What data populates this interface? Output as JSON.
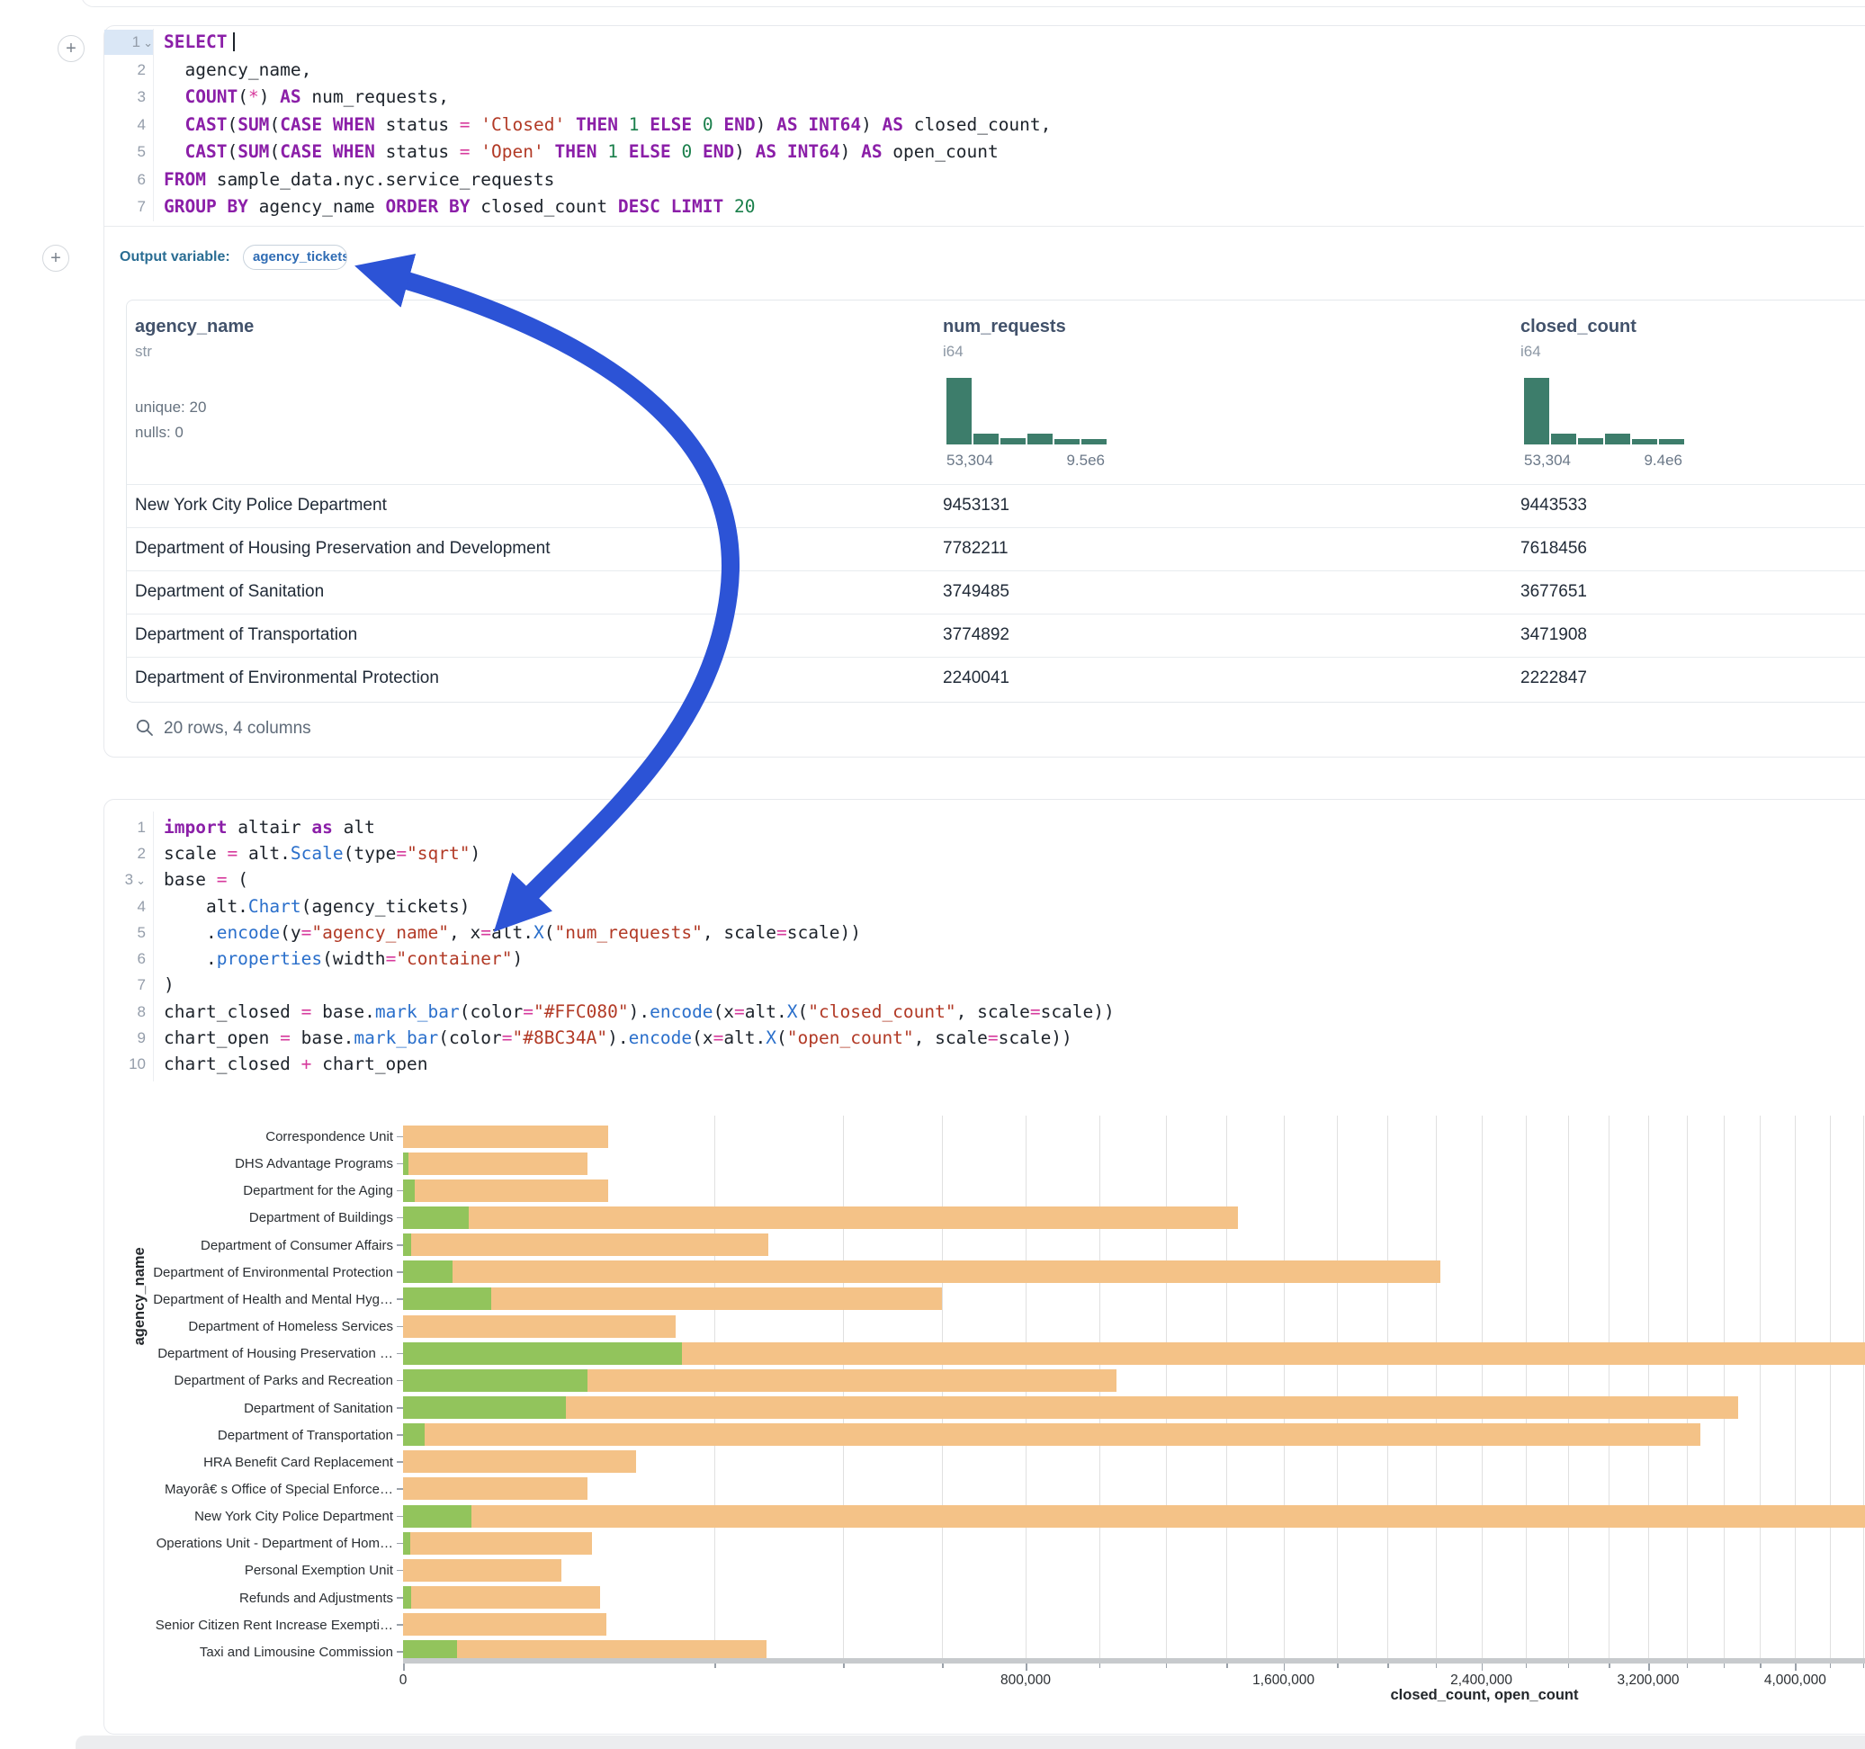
{
  "icons": {
    "collapse_chevron": "⌄",
    "plus": "+"
  },
  "annotation_arrow": {
    "color": "#2C53D6"
  },
  "sql_cell": {
    "output_variable_label": "Output variable:",
    "output_variable_value": "agency_tickets",
    "lines": [
      {
        "n": "1",
        "chev": true,
        "active": true,
        "tokens": [
          [
            "kw",
            "SELECT"
          ],
          [
            "cursor",
            ""
          ]
        ]
      },
      {
        "n": "2",
        "tokens": [
          [
            "p",
            "  agency_name,"
          ]
        ]
      },
      {
        "n": "3",
        "tokens": [
          [
            "p",
            "  "
          ],
          [
            "kw",
            "COUNT"
          ],
          [
            "p",
            "("
          ],
          [
            "op",
            "*"
          ],
          [
            "p",
            ") "
          ],
          [
            "kw",
            "AS"
          ],
          [
            "p",
            " num_requests,"
          ]
        ]
      },
      {
        "n": "4",
        "tokens": [
          [
            "p",
            "  "
          ],
          [
            "kw",
            "CAST"
          ],
          [
            "p",
            "("
          ],
          [
            "kw",
            "SUM"
          ],
          [
            "p",
            "("
          ],
          [
            "kw",
            "CASE"
          ],
          [
            "p",
            " "
          ],
          [
            "kw",
            "WHEN"
          ],
          [
            "p",
            " status "
          ],
          [
            "op",
            "="
          ],
          [
            "p",
            " "
          ],
          [
            "str",
            "'Closed'"
          ],
          [
            "p",
            " "
          ],
          [
            "kw",
            "THEN"
          ],
          [
            "p",
            " "
          ],
          [
            "num",
            "1"
          ],
          [
            "p",
            " "
          ],
          [
            "kw",
            "ELSE"
          ],
          [
            "p",
            " "
          ],
          [
            "num",
            "0"
          ],
          [
            "p",
            " "
          ],
          [
            "kw",
            "END"
          ],
          [
            "p",
            ") "
          ],
          [
            "kw",
            "AS"
          ],
          [
            "p",
            " "
          ],
          [
            "kw",
            "INT64"
          ],
          [
            "p",
            ") "
          ],
          [
            "kw",
            "AS"
          ],
          [
            "p",
            " closed_count,"
          ]
        ]
      },
      {
        "n": "5",
        "tokens": [
          [
            "p",
            "  "
          ],
          [
            "kw",
            "CAST"
          ],
          [
            "p",
            "("
          ],
          [
            "kw",
            "SUM"
          ],
          [
            "p",
            "("
          ],
          [
            "kw",
            "CASE"
          ],
          [
            "p",
            " "
          ],
          [
            "kw",
            "WHEN"
          ],
          [
            "p",
            " status "
          ],
          [
            "op",
            "="
          ],
          [
            "p",
            " "
          ],
          [
            "str",
            "'Open'"
          ],
          [
            "p",
            " "
          ],
          [
            "kw",
            "THEN"
          ],
          [
            "p",
            " "
          ],
          [
            "num",
            "1"
          ],
          [
            "p",
            " "
          ],
          [
            "kw",
            "ELSE"
          ],
          [
            "p",
            " "
          ],
          [
            "num",
            "0"
          ],
          [
            "p",
            " "
          ],
          [
            "kw",
            "END"
          ],
          [
            "p",
            ") "
          ],
          [
            "kw",
            "AS"
          ],
          [
            "p",
            " "
          ],
          [
            "kw",
            "INT64"
          ],
          [
            "p",
            ") "
          ],
          [
            "kw",
            "AS"
          ],
          [
            "p",
            " open_count"
          ]
        ]
      },
      {
        "n": "6",
        "tokens": [
          [
            "kw",
            "FROM"
          ],
          [
            "p",
            " sample_data.nyc.service_requests"
          ]
        ]
      },
      {
        "n": "7",
        "tokens": [
          [
            "kw",
            "GROUP BY"
          ],
          [
            "p",
            " agency_name "
          ],
          [
            "kw",
            "ORDER BY"
          ],
          [
            "p",
            " closed_count "
          ],
          [
            "kw",
            "DESC"
          ],
          [
            "p",
            " "
          ],
          [
            "kw",
            "LIMIT"
          ],
          [
            "p",
            " "
          ],
          [
            "num",
            "20"
          ]
        ]
      }
    ]
  },
  "result_table": {
    "columns": [
      {
        "name": "agency_name",
        "type": "str",
        "stats": [
          "unique: 20",
          "nulls: 0"
        ]
      },
      {
        "name": "num_requests",
        "type": "i64",
        "hist": {
          "bins": [
            1,
            0.16,
            0.09,
            0.16,
            0.08,
            0.08
          ],
          "min_label": "53,304",
          "max_label": "9.5e6"
        }
      },
      {
        "name": "closed_count",
        "type": "i64",
        "hist": {
          "bins": [
            1,
            0.16,
            0.09,
            0.16,
            0.08,
            0.08
          ],
          "min_label": "53,304",
          "max_label": "9.4e6"
        }
      }
    ],
    "rows": [
      [
        "New York City Police Department",
        "9453131",
        "9443533"
      ],
      [
        "Department of Housing Preservation and Development",
        "7782211",
        "7618456"
      ],
      [
        "Department of Sanitation",
        "3749485",
        "3677651"
      ],
      [
        "Department of Transportation",
        "3774892",
        "3471908"
      ],
      [
        "Department of Environmental Protection",
        "2240041",
        "2222847"
      ]
    ],
    "footer": "20 rows, 4 columns"
  },
  "python_cell": {
    "lines": [
      {
        "n": "1",
        "tokens": [
          [
            "kw",
            "import"
          ],
          [
            "p",
            " altair "
          ],
          [
            "kw",
            "as"
          ],
          [
            "p",
            " alt"
          ]
        ]
      },
      {
        "n": "2",
        "tokens": [
          [
            "p",
            "scale "
          ],
          [
            "op",
            "="
          ],
          [
            "p",
            " alt."
          ],
          [
            "fn",
            "Scale"
          ],
          [
            "p",
            "(type"
          ],
          [
            "op",
            "="
          ],
          [
            "str",
            "\"sqrt\""
          ],
          [
            "p",
            ")"
          ]
        ]
      },
      {
        "n": "3",
        "chev": true,
        "tokens": [
          [
            "p",
            "base "
          ],
          [
            "op",
            "="
          ],
          [
            "p",
            " ("
          ]
        ]
      },
      {
        "n": "4",
        "tokens": [
          [
            "p",
            "    alt."
          ],
          [
            "fn",
            "Chart"
          ],
          [
            "p",
            "(agency_tickets)"
          ]
        ]
      },
      {
        "n": "5",
        "tokens": [
          [
            "p",
            "    ."
          ],
          [
            "fn",
            "encode"
          ],
          [
            "p",
            "(y"
          ],
          [
            "op",
            "="
          ],
          [
            "str",
            "\"agency_name\""
          ],
          [
            "p",
            ", x"
          ],
          [
            "op",
            "="
          ],
          [
            "p",
            "alt."
          ],
          [
            "fn",
            "X"
          ],
          [
            "p",
            "("
          ],
          [
            "str",
            "\"num_requests\""
          ],
          [
            "p",
            ", scale"
          ],
          [
            "op",
            "="
          ],
          [
            "p",
            "scale))"
          ]
        ]
      },
      {
        "n": "6",
        "tokens": [
          [
            "p",
            "    ."
          ],
          [
            "fn",
            "properties"
          ],
          [
            "p",
            "(width"
          ],
          [
            "op",
            "="
          ],
          [
            "str",
            "\"container\""
          ],
          [
            "p",
            ")"
          ]
        ]
      },
      {
        "n": "7",
        "tokens": [
          [
            "p",
            ")"
          ]
        ]
      },
      {
        "n": "8",
        "tokens": [
          [
            "p",
            "chart_closed "
          ],
          [
            "op",
            "="
          ],
          [
            "p",
            " base."
          ],
          [
            "fn",
            "mark_bar"
          ],
          [
            "p",
            "(color"
          ],
          [
            "op",
            "="
          ],
          [
            "str",
            "\"#FFC080\""
          ],
          [
            "p",
            ")."
          ],
          [
            "fn",
            "encode"
          ],
          [
            "p",
            "(x"
          ],
          [
            "op",
            "="
          ],
          [
            "p",
            "alt."
          ],
          [
            "fn",
            "X"
          ],
          [
            "p",
            "("
          ],
          [
            "str",
            "\"closed_count\""
          ],
          [
            "p",
            ", scale"
          ],
          [
            "op",
            "="
          ],
          [
            "p",
            "scale))"
          ]
        ]
      },
      {
        "n": "9",
        "tokens": [
          [
            "p",
            "chart_open "
          ],
          [
            "op",
            "="
          ],
          [
            "p",
            " base."
          ],
          [
            "fn",
            "mark_bar"
          ],
          [
            "p",
            "(color"
          ],
          [
            "op",
            "="
          ],
          [
            "str",
            "\"#8BC34A\""
          ],
          [
            "p",
            ")."
          ],
          [
            "fn",
            "encode"
          ],
          [
            "p",
            "(x"
          ],
          [
            "op",
            "="
          ],
          [
            "p",
            "alt."
          ],
          [
            "fn",
            "X"
          ],
          [
            "p",
            "("
          ],
          [
            "str",
            "\"open_count\""
          ],
          [
            "p",
            ", scale"
          ],
          [
            "op",
            "="
          ],
          [
            "p",
            "scale))"
          ]
        ]
      },
      {
        "n": "10",
        "tokens": [
          [
            "p",
            "chart_closed "
          ],
          [
            "op",
            "+"
          ],
          [
            "p",
            " chart_open"
          ]
        ]
      }
    ]
  },
  "chart_data": {
    "type": "bar",
    "orientation": "horizontal",
    "scale_type": "sqrt",
    "title": "",
    "xlabel": "closed_count, open_count",
    "ylabel": "agency_name",
    "categories": [
      "Correspondence Unit",
      "DHS Advantage Programs",
      "Department for the Aging",
      "Department of Buildings",
      "Department of Consumer Affairs",
      "Department of Environmental Protection",
      "Department of Health and Mental Hyg…",
      "Department of Homeless Services",
      "Department of Housing Preservation …",
      "Department of Parks and Recreation",
      "Department of Sanitation",
      "Department of Transportation",
      "HRA Benefit Card Replacement",
      "Mayorâ€ s Office of Special Enforce…",
      "New York City Police Department",
      "Operations Unit - Department of Hom…",
      "Personal Exemption Unit",
      "Refunds and Adjustments",
      "Senior Citizen Rent Increase Exempti…",
      "Taxi and Limousine Commission"
    ],
    "series": [
      {
        "name": "closed_count",
        "color": "#F4C287",
        "values": [
          87000,
          70000,
          87000,
          1440000,
          275000,
          2222847,
          600000,
          153000,
          7618456,
          1050000,
          3677651,
          3471908,
          112000,
          70000,
          9443533,
          74000,
          52000,
          80000,
          85000,
          273000
        ]
      },
      {
        "name": "open_count",
        "color": "#92C45C",
        "values": [
          0,
          60,
          300,
          9000,
          150,
          5000,
          16000,
          0,
          161000,
          70000,
          55000,
          1000,
          0,
          0,
          9598,
          100,
          0,
          150,
          0,
          6000
        ]
      }
    ],
    "x_ticks": [
      0,
      800000,
      1600000,
      2400000,
      3200000,
      4000000
    ],
    "x_tick_labels": [
      "0",
      "800,000",
      "1,600,000",
      "2,400,000",
      "3,200,000",
      "4,000,000"
    ],
    "gridline_step": 200000,
    "grid": true,
    "legend": "none",
    "x_visible_max": 4400000
  }
}
